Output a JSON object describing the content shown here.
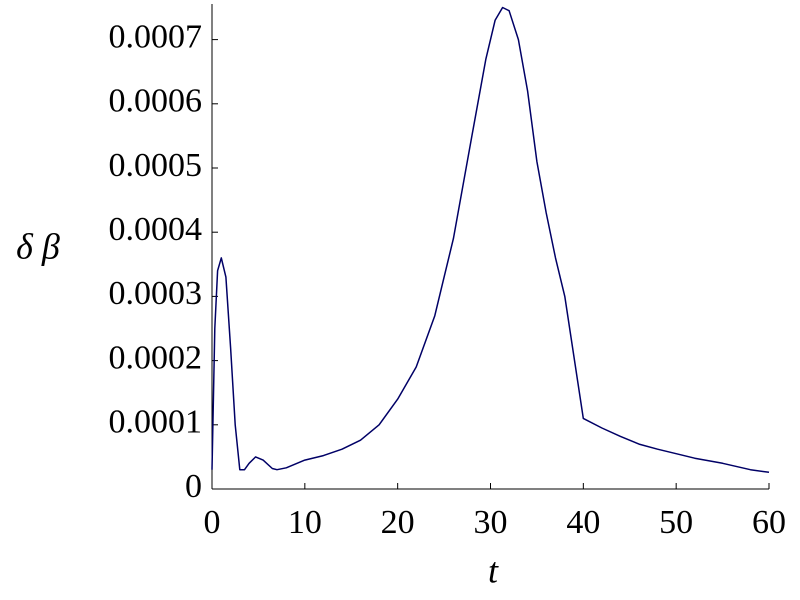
{
  "chart_data": {
    "type": "line",
    "xlabel": "t",
    "ylabel": "δ β",
    "xlim": [
      0,
      60
    ],
    "xticks": [
      0,
      10,
      20,
      30,
      40,
      50,
      60
    ],
    "ylim": [
      0,
      0.00075
    ],
    "yticks": [
      0,
      0.0001,
      0.0002,
      0.0003,
      0.0004,
      0.0005,
      0.0006,
      0.0007
    ],
    "series": [
      {
        "color": "#000066",
        "x": [
          0,
          0.3,
          0.6,
          1,
          1.5,
          2,
          2.5,
          3,
          3.5,
          4,
          4.7,
          5.5,
          6.5,
          7,
          8,
          10,
          12,
          14,
          16,
          18,
          20,
          22,
          24,
          25,
          26,
          28,
          29.5,
          30.5,
          31.3,
          32,
          33,
          34,
          35,
          36,
          37,
          38,
          40,
          42,
          44,
          46,
          48,
          50,
          52,
          55,
          58,
          60
        ],
        "values": [
          3e-05,
          0.00025,
          0.00034,
          0.00036,
          0.00033,
          0.00022,
          0.0001,
          3e-05,
          3e-05,
          4e-05,
          5e-05,
          4.5e-05,
          3.2e-05,
          3e-05,
          3.3e-05,
          4.5e-05,
          5.2e-05,
          6.2e-05,
          7.6e-05,
          0.0001,
          0.00014,
          0.00019,
          0.00027,
          0.00033,
          0.00039,
          0.00055,
          0.00067,
          0.00073,
          0.00075,
          0.000745,
          0.0007,
          0.00062,
          0.00051,
          0.00043,
          0.00036,
          0.0003,
          0.00011,
          9.5e-05,
          8.2e-05,
          7e-05,
          6.2e-05,
          5.5e-05,
          4.8e-05,
          4e-05,
          3e-05,
          2.6e-05
        ]
      }
    ]
  }
}
